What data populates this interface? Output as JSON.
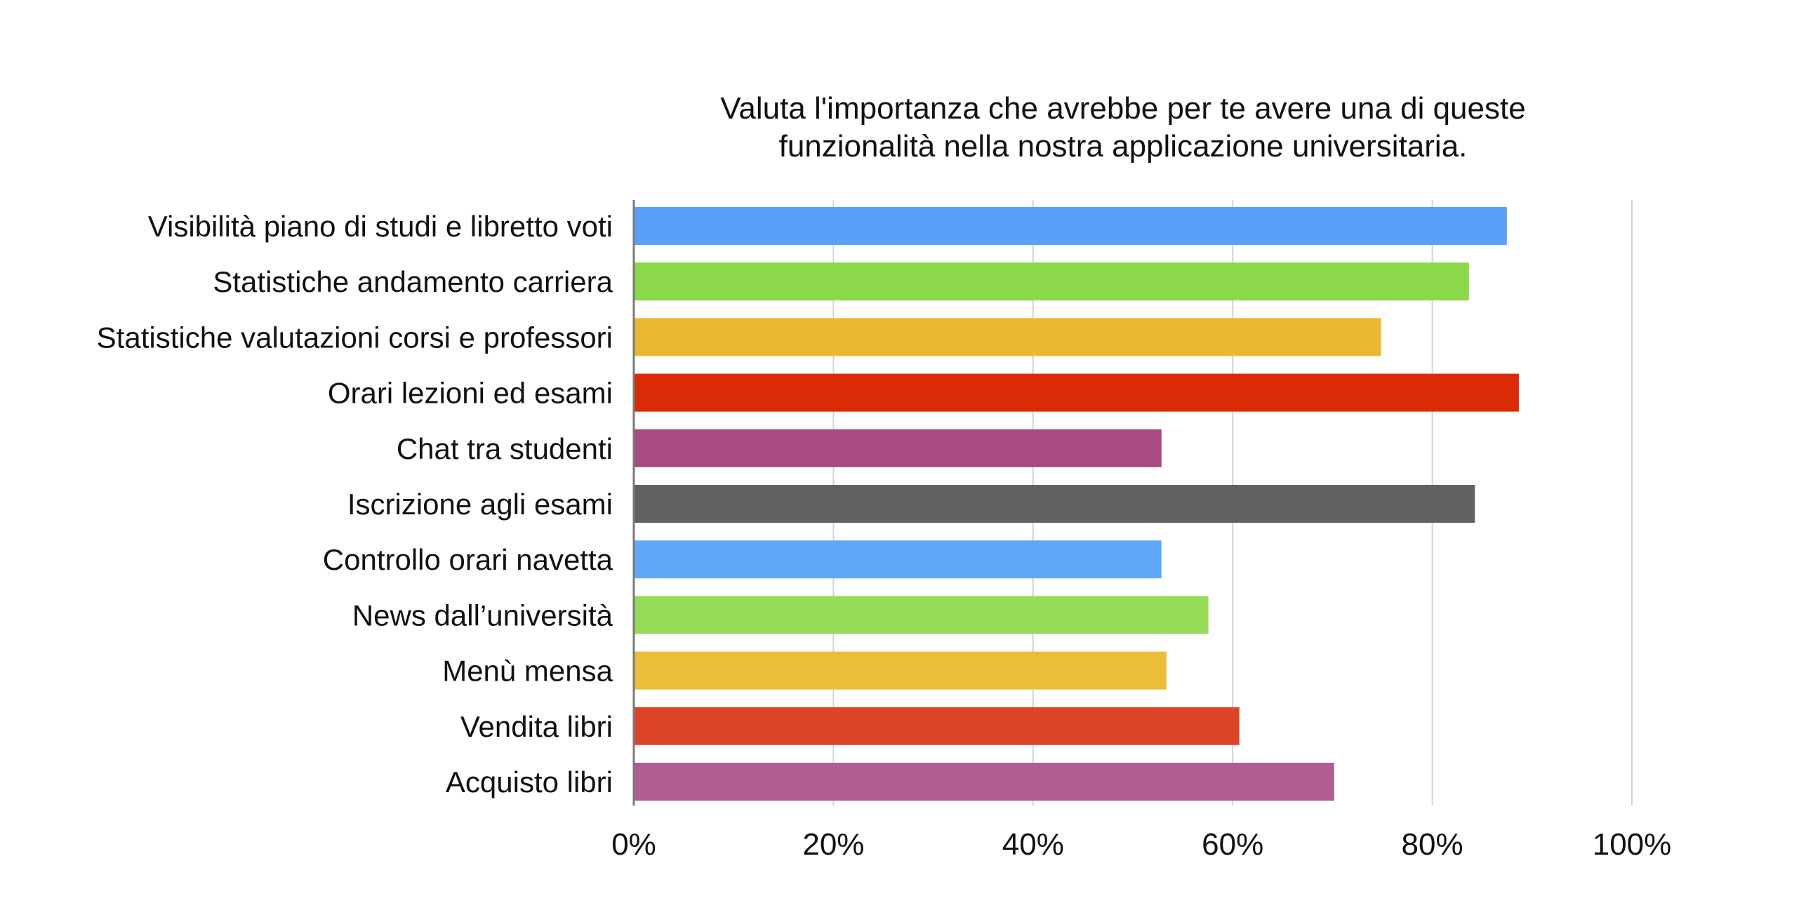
{
  "chart_data": {
    "type": "bar",
    "orientation": "horizontal",
    "title_lines": [
      "Valuta l'importanza che avrebbe per te avere una di queste",
      "funzionalità nella nostra applicazione universitaria."
    ],
    "categories": [
      "Visibilità piano di studi e libretto voti",
      "Statistiche andamento carriera",
      "Statistiche valutazioni corsi e professori",
      "Orari lezioni ed esami",
      "Chat tra studenti",
      "Iscrizione agli esami",
      "Controllo orari navetta",
      "News dall’università",
      "Menù mensa",
      "Vendita libri",
      "Acquisto libri"
    ],
    "values": [
      87.4,
      83.6,
      74.8,
      88.6,
      52.8,
      84.2,
      52.8,
      57.5,
      53.3,
      60.6,
      70.1
    ],
    "colors": [
      "#5aa0fa",
      "#8cd84b",
      "#e9b92f",
      "#db2a06",
      "#a74b81",
      "#616161",
      "#62a8fa",
      "#97dc58",
      "#ebbe3a",
      "#dd4529",
      "#b15d92"
    ],
    "xlim": [
      0,
      100
    ],
    "xticks": [
      "0%",
      "20%",
      "40%",
      "60%",
      "80%",
      "100%"
    ],
    "xtick_values": [
      0,
      20,
      40,
      60,
      80,
      100
    ],
    "grid": true,
    "legend": "none"
  }
}
